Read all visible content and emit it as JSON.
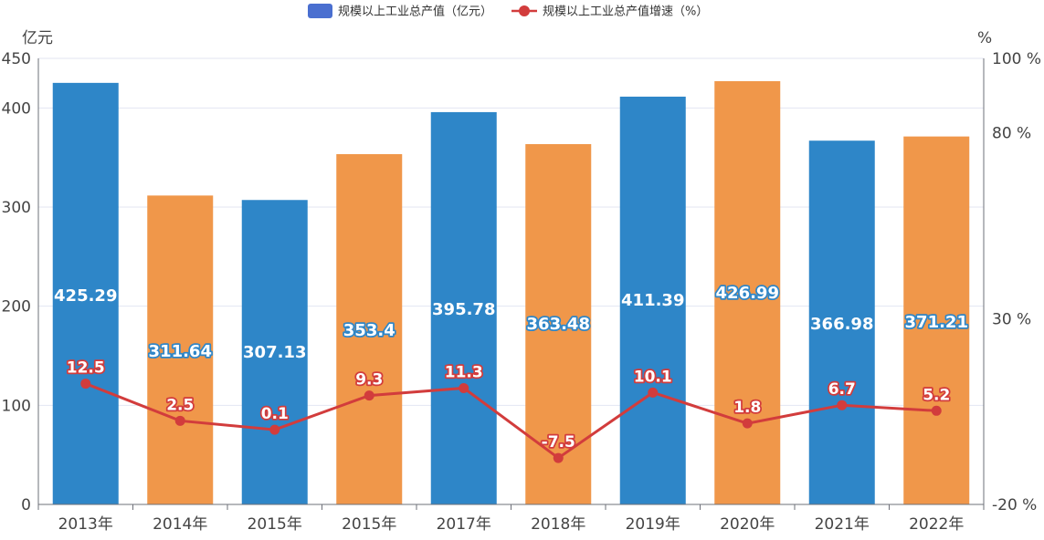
{
  "chart_data": {
    "type": "bar",
    "categories": [
      "2013年",
      "2014年",
      "2015年",
      "2015年",
      "2017年",
      "2018年",
      "2019年",
      "2020年",
      "2021年",
      "2022年"
    ],
    "series": [
      {
        "name": "规模以上工业总产值（亿元）",
        "type": "bar",
        "axis": "left",
        "values": [
          425.29,
          311.64,
          307.13,
          353.4,
          395.78,
          363.48,
          411.39,
          426.99,
          366.98,
          371.21
        ],
        "labels": [
          "425.29",
          "311.64",
          "307.13",
          "353.4",
          "395.78",
          "363.48",
          "411.39",
          "426.99",
          "366.98",
          "371.21"
        ],
        "colors": [
          "#2e86c8",
          "#f0974a",
          "#2e86c8",
          "#f0974a",
          "#2e86c8",
          "#f0974a",
          "#2e86c8",
          "#f0974a",
          "#2e86c8",
          "#f0974a"
        ],
        "label_styles": [
          "plain",
          "outlined",
          "plain",
          "outlined",
          "plain",
          "outlined",
          "plain",
          "outlined",
          "plain",
          "outlined"
        ]
      },
      {
        "name": "规模以上工业总产值增速（%）",
        "type": "line",
        "axis": "right",
        "values": [
          12.5,
          2.5,
          0.1,
          9.3,
          11.3,
          -7.5,
          10.1,
          1.8,
          6.7,
          5.2
        ],
        "labels": [
          "12.5",
          "2.5",
          "0.1",
          "9.3",
          "11.3",
          "-7.5",
          "10.1",
          "1.8",
          "6.7",
          "5.2"
        ],
        "color": "#d23c3c"
      }
    ],
    "left_axis": {
      "unit": "亿元",
      "ylim": [
        0,
        450
      ],
      "ticks": [
        0,
        100,
        200,
        300,
        400,
        450
      ],
      "tick_labels": [
        "0",
        "100",
        "200",
        "300",
        "400",
        "450"
      ]
    },
    "right_axis": {
      "unit": "%",
      "ylim": [
        -20,
        100
      ],
      "ticks": [
        -20,
        30,
        80,
        100
      ],
      "tick_labels": [
        "-20 %",
        "30 %",
        "80 %",
        "100 %"
      ]
    },
    "grid": true,
    "legend_position": "top-center",
    "legend_colors": {
      "bar": "#4a6fd0",
      "line": "#d23c3c"
    },
    "colors": {
      "blue": "#2e86c8",
      "orange": "#f0974a",
      "red": "#d23c3c",
      "grid": "#e3e6f2",
      "label_outline_blue": "#2e86c8",
      "label_outline_red": "#d23c3c"
    }
  }
}
